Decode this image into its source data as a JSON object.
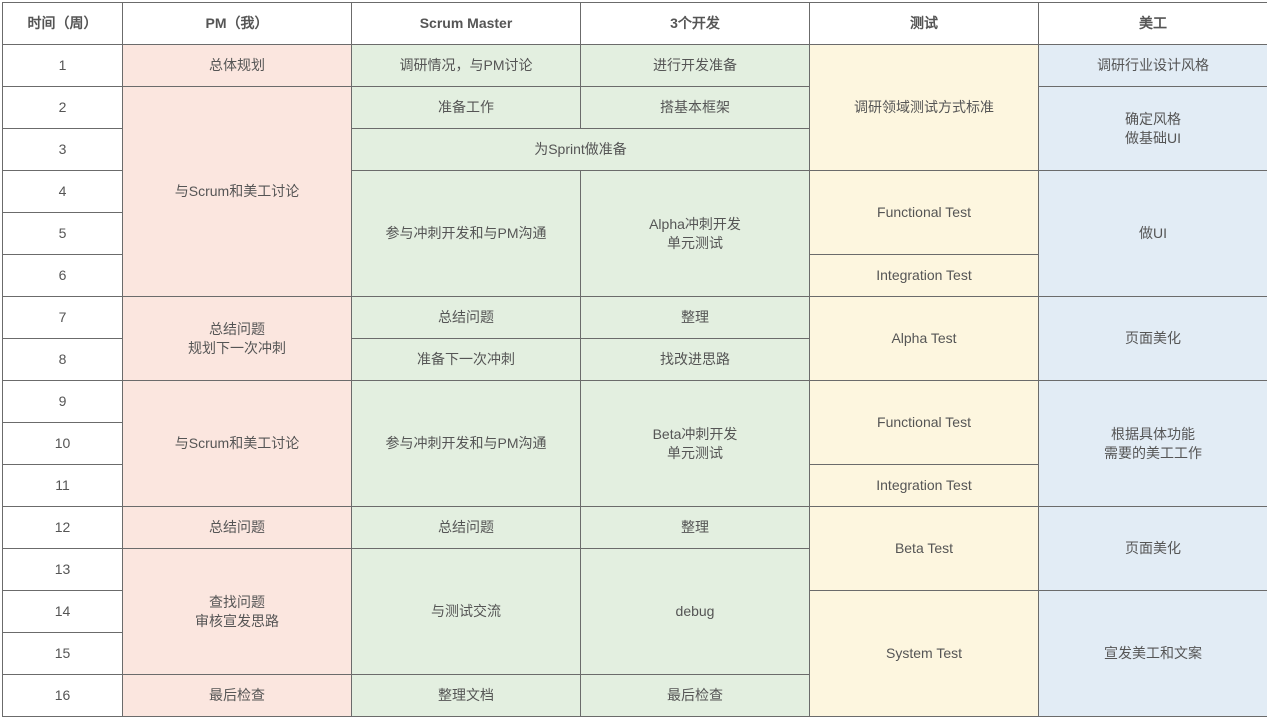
{
  "colors": {
    "pm": "#fbe6df",
    "scrum": "#e3efe0",
    "dev": "#e3efe0",
    "test": "#fdf6df",
    "art": "#e2ecf5",
    "border": "#6b6b6b",
    "text": "#555555",
    "header_bg": "#ffffff"
  },
  "fonts": {
    "base_size": 14,
    "header_weight": "bold"
  },
  "headers": {
    "week": "时间（周）",
    "pm": "PM（我）",
    "scrum": "Scrum Master",
    "dev": "3个开发",
    "test": "测试",
    "art": "美工"
  },
  "weeks": [
    "1",
    "2",
    "3",
    "4",
    "5",
    "6",
    "7",
    "8",
    "9",
    "10",
    "11",
    "12",
    "13",
    "14",
    "15",
    "16"
  ],
  "cells": {
    "pm_w1": "总体规划",
    "pm_w2_6": "与Scrum和美工讨论",
    "pm_w7_8_l1": "总结问题",
    "pm_w7_8_l2": "规划下一次冲刺",
    "pm_w9_11": "与Scrum和美工讨论",
    "pm_w12": "总结问题",
    "pm_w13_15_l1": "查找问题",
    "pm_w13_15_l2": "审核宣发思路",
    "pm_w16": "最后检查",
    "scrum_w1": "调研情况，与PM讨论",
    "scrum_w2": "准备工作",
    "scrum_dev_w3": "为Sprint做准备",
    "scrum_w4_6": "参与冲刺开发和与PM沟通",
    "scrum_w7": "总结问题",
    "scrum_w8": "准备下一次冲刺",
    "scrum_w9_11": "参与冲刺开发和与PM沟通",
    "scrum_w12": "总结问题",
    "scrum_w13_15": "与测试交流",
    "scrum_w16": "整理文档",
    "dev_w1": "进行开发准备",
    "dev_w2": "搭基本框架",
    "dev_w4_6_l1": "Alpha冲刺开发",
    "dev_w4_6_l2": "单元测试",
    "dev_w7": "整理",
    "dev_w8": "找改进思路",
    "dev_w9_11_l1": "Beta冲刺开发",
    "dev_w9_11_l2": "单元测试",
    "dev_w12": "整理",
    "dev_w13_15": "debug",
    "dev_w16": "最后检查",
    "test_w1_3": "调研领域测试方式标准",
    "test_w4_5": "Functional Test",
    "test_w6": "Integration Test",
    "test_w7_8": "Alpha Test",
    "test_w9_10": "Functional Test",
    "test_w11": "Integration Test",
    "test_w12_13": "Beta Test",
    "test_w14_16": "System Test",
    "art_w1": "调研行业设计风格",
    "art_w2_3_l1": "确定风格",
    "art_w2_3_l2": "做基础UI",
    "art_w4_6": "做UI",
    "art_w7_8": "页面美化",
    "art_w9_11_l1": "根据具体功能",
    "art_w9_11_l2": "需要的美工工作",
    "art_w12_13": "页面美化",
    "art_w14_16": "宣发美工和文案"
  }
}
